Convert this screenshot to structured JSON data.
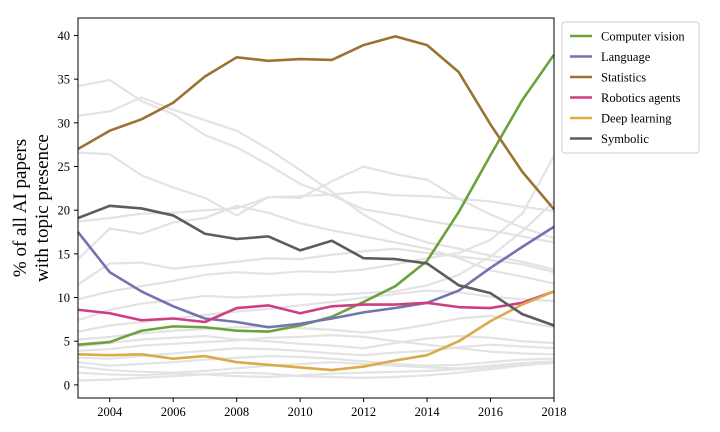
{
  "chart_data": {
    "type": "line",
    "title": "",
    "xlabel": "",
    "ylabel_lines": [
      "% of all AI papers",
      "with topic presence"
    ],
    "xlim": [
      2003,
      2018
    ],
    "ylim": [
      -1.5,
      42
    ],
    "xticks": [
      "2004",
      "2006",
      "2008",
      "2010",
      "2012",
      "2014",
      "2016",
      "2018"
    ],
    "yticks": [
      "0",
      "5",
      "10",
      "15",
      "20",
      "25",
      "30",
      "35",
      "40"
    ],
    "grid": false,
    "legend_position": "top-right",
    "x": [
      2003,
      2004,
      2005,
      2006,
      2007,
      2008,
      2009,
      2010,
      2011,
      2012,
      2013,
      2014,
      2015,
      2016,
      2017,
      2018
    ],
    "series": [
      {
        "name": "Computer vision",
        "color": "#6aa23b",
        "values": [
          4.6,
          4.9,
          6.2,
          6.7,
          6.6,
          6.2,
          6.1,
          6.8,
          7.8,
          9.5,
          11.3,
          14.2,
          19.8,
          26.3,
          32.6,
          37.8
        ]
      },
      {
        "name": "Language",
        "color": "#7473b2",
        "values": [
          17.5,
          12.9,
          10.7,
          9.0,
          7.6,
          7.2,
          6.6,
          7.0,
          7.6,
          8.3,
          8.8,
          9.4,
          10.8,
          13.4,
          15.8,
          18.1
        ]
      },
      {
        "name": "Statistics",
        "color": "#9b7330",
        "values": [
          27.0,
          29.1,
          30.4,
          32.3,
          35.3,
          37.5,
          37.1,
          37.3,
          37.2,
          38.9,
          39.9,
          38.9,
          35.8,
          29.8,
          24.4,
          20.1
        ]
      },
      {
        "name": "Robotics agents",
        "color": "#cc3f81",
        "values": [
          8.6,
          8.2,
          7.4,
          7.6,
          7.2,
          8.8,
          9.1,
          8.2,
          9.0,
          9.2,
          9.2,
          9.4,
          8.9,
          8.8,
          9.4,
          10.7
        ]
      },
      {
        "name": "Deep learning",
        "color": "#dcaa48",
        "values": [
          3.5,
          3.4,
          3.5,
          3.0,
          3.3,
          2.6,
          2.3,
          2.0,
          1.7,
          2.1,
          2.8,
          3.4,
          5.0,
          7.3,
          9.2,
          10.7
        ]
      },
      {
        "name": "Symbolic",
        "color": "#5c5c5c",
        "values": [
          19.1,
          20.5,
          20.2,
          19.4,
          17.3,
          16.7,
          17.0,
          15.4,
          16.5,
          14.5,
          14.4,
          13.9,
          11.4,
          10.5,
          8.1,
          6.8
        ]
      }
    ],
    "background_series_color": "#e3e3e3",
    "background_series": [
      [
        34.2,
        34.9,
        32.5,
        31.0,
        28.6,
        27.2,
        25.2,
        23.0,
        21.7,
        20.1,
        19.5,
        18.8,
        18.2,
        17.7,
        17.0,
        16.3
      ],
      [
        30.8,
        31.3,
        32.9,
        31.5,
        30.3,
        29.1,
        27.0,
        24.6,
        22.1,
        19.5,
        17.5,
        16.3,
        15.6,
        14.8,
        14.1,
        13.2
      ],
      [
        26.6,
        26.4,
        24.0,
        22.6,
        21.4,
        19.4,
        21.5,
        21.4,
        23.3,
        25.0,
        24.1,
        23.5,
        21.3,
        19.5,
        18.0,
        16.8
      ],
      [
        18.7,
        19.1,
        19.6,
        19.7,
        20.0,
        20.2,
        21.5,
        21.6,
        21.8,
        22.1,
        21.7,
        21.6,
        21.3,
        21.0,
        20.4,
        19.9
      ],
      [
        14.4,
        17.9,
        17.3,
        18.6,
        19.1,
        20.5,
        19.7,
        18.5,
        17.7,
        17.0,
        16.3,
        15.6,
        14.5,
        13.1,
        12.4,
        11.6
      ],
      [
        11.5,
        13.9,
        14.0,
        13.3,
        13.7,
        14.1,
        14.5,
        14.4,
        14.9,
        15.3,
        15.6,
        15.1,
        14.7,
        14.3,
        13.8,
        12.9
      ],
      [
        9.8,
        10.7,
        11.3,
        11.9,
        12.6,
        12.9,
        12.7,
        13.0,
        12.9,
        13.2,
        13.8,
        14.5,
        15.1,
        16.6,
        19.6,
        26.2
      ],
      [
        7.4,
        8.6,
        9.3,
        9.7,
        10.2,
        10.0,
        10.2,
        10.4,
        10.3,
        10.5,
        10.7,
        11.4,
        12.6,
        14.7,
        17.6,
        21.0
      ],
      [
        6.1,
        6.8,
        7.2,
        7.6,
        8.0,
        8.4,
        8.7,
        9.1,
        9.5,
        10.0,
        10.4,
        10.8,
        10.6,
        10.1,
        9.8,
        9.6
      ],
      [
        5.2,
        5.5,
        5.9,
        6.2,
        6.4,
        6.6,
        6.7,
        6.5,
        6.3,
        6.0,
        6.3,
        6.9,
        7.6,
        7.9,
        7.2,
        6.6
      ],
      [
        4.4,
        4.8,
        5.2,
        5.4,
        5.6,
        5.2,
        5.0,
        4.7,
        4.5,
        4.2,
        4.8,
        5.3,
        5.6,
        5.4,
        5.0,
        4.8
      ],
      [
        3.9,
        4.1,
        4.5,
        4.7,
        4.9,
        5.1,
        5.4,
        5.5,
        5.7,
        5.5,
        5.0,
        4.6,
        4.2,
        3.8,
        3.6,
        3.5
      ],
      [
        3.1,
        3.0,
        3.3,
        3.6,
        3.9,
        4.2,
        4.1,
        3.9,
        3.6,
        3.4,
        3.7,
        3.9,
        4.3,
        4.6,
        4.4,
        4.2
      ],
      [
        2.6,
        2.2,
        2.4,
        2.6,
        2.9,
        3.1,
        3.3,
        3.2,
        3.0,
        2.7,
        2.4,
        2.2,
        2.3,
        2.6,
        2.9,
        3.0
      ],
      [
        2.1,
        1.7,
        1.5,
        1.4,
        1.6,
        1.9,
        2.2,
        2.4,
        2.6,
        2.4,
        2.2,
        2.0,
        1.9,
        2.2,
        2.5,
        2.7
      ],
      [
        1.4,
        1.2,
        1.1,
        1.3,
        1.2,
        1.0,
        0.9,
        1.1,
        1.3,
        1.4,
        1.5,
        1.6,
        1.8,
        2.0,
        2.3,
        2.5
      ],
      [
        0.5,
        0.6,
        0.8,
        1.0,
        1.2,
        1.4,
        1.3,
        1.0,
        0.9,
        0.8,
        0.9,
        1.1,
        1.4,
        1.8,
        2.2,
        2.6
      ]
    ]
  }
}
